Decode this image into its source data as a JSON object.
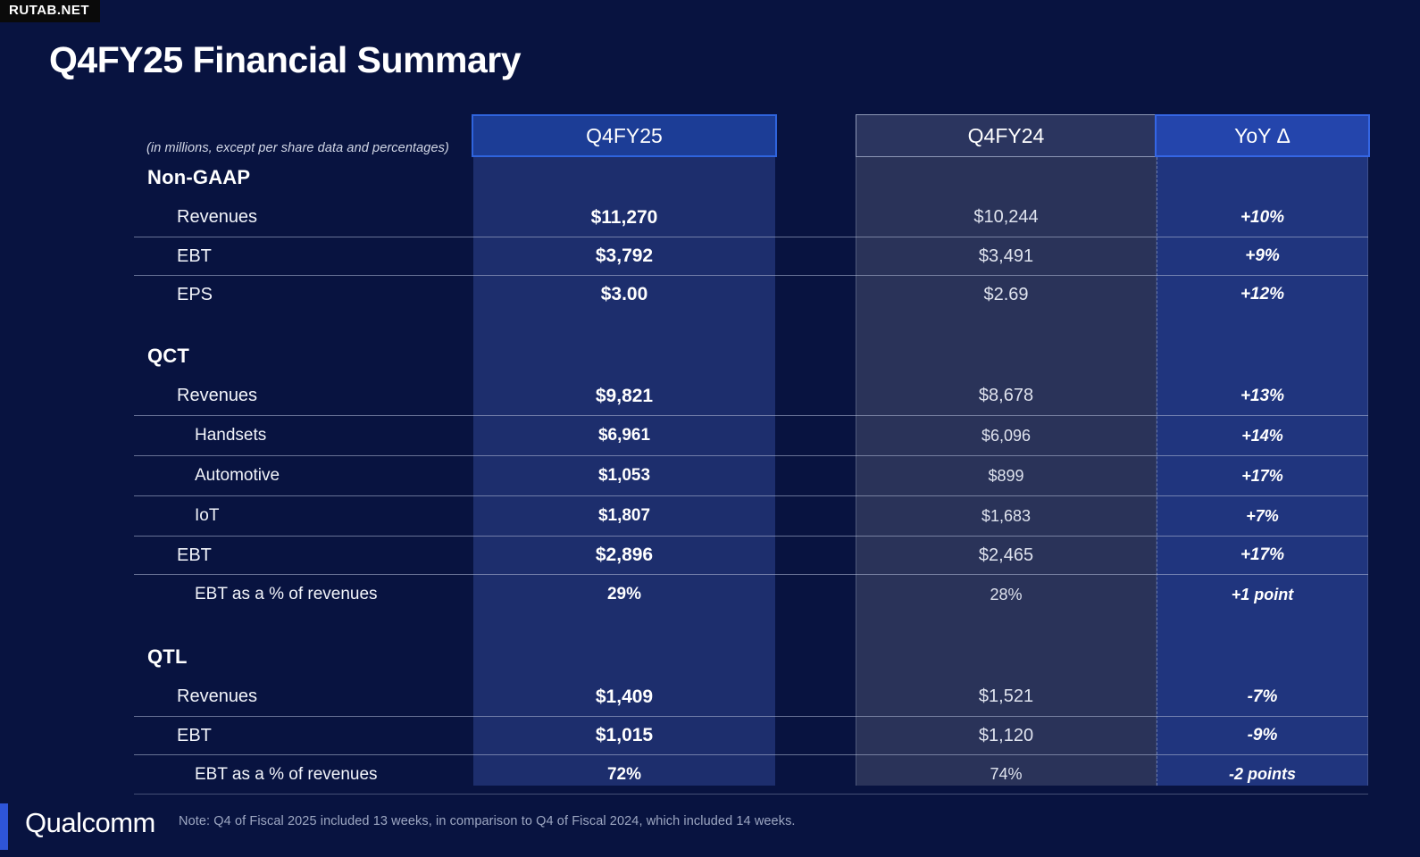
{
  "badge": "RUTAB.NET",
  "title": "Q4FY25 Financial Summary",
  "table": {
    "units_note": "(in millions, except per share data and percentages)",
    "columns": [
      "Q4FY25",
      "Q4FY24",
      "YoY Δ"
    ],
    "sections": [
      {
        "name": "Non-GAAP",
        "rows": [
          {
            "label": "Revenues",
            "level": 1,
            "q4fy25": "$11,270",
            "q4fy24": "$10,244",
            "yoy": "+10%"
          },
          {
            "label": "EBT",
            "level": 1,
            "q4fy25": "$3,792",
            "q4fy24": "$3,491",
            "yoy": "+9%"
          },
          {
            "label": "EPS",
            "level": 1,
            "q4fy25": "$3.00",
            "q4fy24": "$2.69",
            "yoy": "+12%"
          }
        ]
      },
      {
        "name": "QCT",
        "rows": [
          {
            "label": "Revenues",
            "level": 1,
            "q4fy25": "$9,821",
            "q4fy24": "$8,678",
            "yoy": "+13%"
          },
          {
            "label": "Handsets",
            "level": 2,
            "q4fy25": "$6,961",
            "q4fy24": "$6,096",
            "yoy": "+14%"
          },
          {
            "label": "Automotive",
            "level": 2,
            "q4fy25": "$1,053",
            "q4fy24": "$899",
            "yoy": "+17%"
          },
          {
            "label": "IoT",
            "level": 2,
            "q4fy25": "$1,807",
            "q4fy24": "$1,683",
            "yoy": "+7%"
          },
          {
            "label": "EBT",
            "level": 1,
            "q4fy25": "$2,896",
            "q4fy24": "$2,465",
            "yoy": "+17%"
          },
          {
            "label": "EBT as a % of revenues",
            "level": 2,
            "q4fy25": "29%",
            "q4fy24": "28%",
            "yoy": "+1 point"
          }
        ]
      },
      {
        "name": "QTL",
        "rows": [
          {
            "label": "Revenues",
            "level": 1,
            "q4fy25": "$1,409",
            "q4fy24": "$1,521",
            "yoy": "-7%"
          },
          {
            "label": "EBT",
            "level": 1,
            "q4fy25": "$1,015",
            "q4fy24": "$1,120",
            "yoy": "-9%"
          },
          {
            "label": "EBT as a % of revenues",
            "level": 2,
            "q4fy25": "72%",
            "q4fy24": "74%",
            "yoy": "-2 points"
          }
        ]
      }
    ]
  },
  "footer": {
    "logo_text": "Qualcomm",
    "note": "Note: Q4 of Fiscal 2025 included 13 weeks, in comparison to Q4 of Fiscal 2024, which included 14 weeks."
  },
  "colors": {
    "page_bg": "#081340",
    "col_q4fy25_body": "#1d2e6d",
    "col_q4fy25_header": "#1c3d96",
    "col_q4fy25_border": "#2f64dd",
    "col_q4fy24_body": "#2a3359",
    "col_q4fy24_header": "#2b355f",
    "col_q4fy24_border": "#8d97b5",
    "col_yoy_body": "#20357e",
    "col_yoy_header": "#2445ac",
    "col_yoy_border": "#3566e4",
    "row_divider": "#b6c0da",
    "footer_bar": "#2e55d8"
  }
}
